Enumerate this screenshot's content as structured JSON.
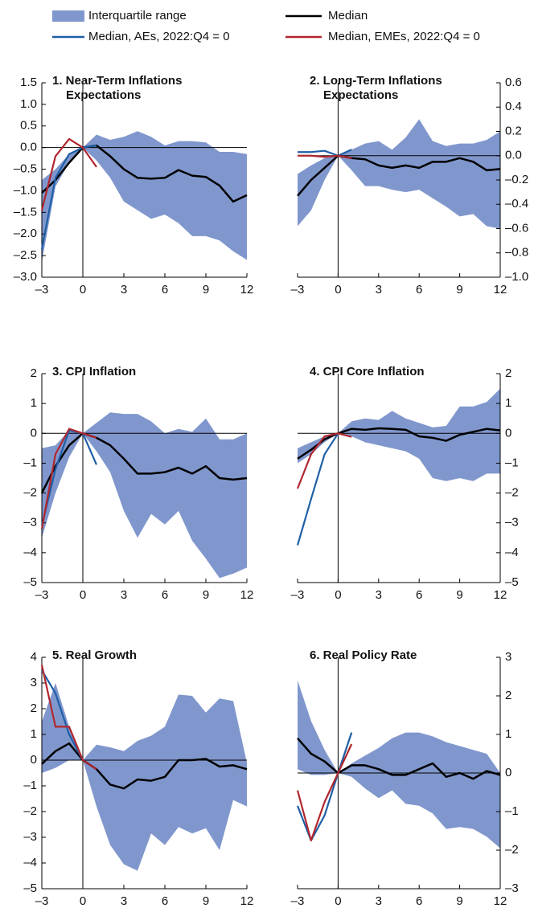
{
  "legend": {
    "iqr": {
      "label": "Interquartile range",
      "color": "#8097cd"
    },
    "median": {
      "label": "Median",
      "color": "#000000"
    },
    "median_aes": {
      "label": "Median, AEs, 2022:Q4 = 0",
      "color": "#1f5fa6"
    },
    "median_emes": {
      "label": "Median, EMEs, 2022:Q4 = 0",
      "color": "#b0272e"
    }
  },
  "chart_data": [
    {
      "type": "line",
      "title": "1. Near-Term Inflations Expectations",
      "yaxis_side": "left",
      "x": [
        -3,
        -2,
        -1,
        0,
        1,
        2,
        3,
        4,
        5,
        6,
        7,
        8,
        9,
        10,
        11,
        12
      ],
      "xlim": [
        -3,
        12
      ],
      "xticks": [
        {
          "value": -3,
          "label": "–3"
        },
        0,
        3,
        6,
        9,
        12
      ],
      "ylim": [
        -3,
        1.5
      ],
      "yticks": [
        {
          "value": -3,
          "label": "–3.0"
        },
        {
          "value": -2.5,
          "label": "–2.5"
        },
        {
          "value": -2,
          "label": "–2.0"
        },
        {
          "value": -1.5,
          "label": "–1.5"
        },
        {
          "value": -1,
          "label": "–1.0"
        },
        {
          "value": -0.5,
          "label": "–0.5"
        },
        {
          "value": 0,
          "label": "0.0"
        },
        0.5,
        {
          "value": 1,
          "label": "1.0"
        },
        1.5
      ],
      "iqr": {
        "upper": [
          -0.75,
          -0.5,
          -0.15,
          0,
          0.3,
          0.18,
          0.25,
          0.38,
          0.25,
          0.05,
          0.15,
          0.15,
          0.12,
          -0.1,
          -0.1,
          -0.15
        ],
        "lower": [
          -2.65,
          -0.9,
          -0.35,
          0,
          -0.3,
          -0.7,
          -1.25,
          -1.45,
          -1.65,
          -1.55,
          -1.75,
          -2.05,
          -2.05,
          -2.15,
          -2.4,
          -2.6
        ]
      },
      "median": [
        -1.05,
        -0.75,
        -0.35,
        0,
        0.05,
        -0.2,
        -0.5,
        -0.7,
        -0.72,
        -0.7,
        -0.52,
        -0.65,
        -0.68,
        -0.88,
        -1.25,
        -1.1
      ],
      "median_aes": [
        -2.35,
        -0.7,
        -0.15,
        0,
        0.05,
        null,
        null,
        null,
        null,
        null,
        null,
        null,
        null,
        null,
        null,
        null
      ],
      "median_emes": [
        -1.45,
        -0.2,
        0.2,
        0,
        -0.45,
        null,
        null,
        null,
        null,
        null,
        null,
        null,
        null,
        null,
        null,
        null
      ]
    },
    {
      "type": "line",
      "title": "2. Long-Term Inflations Expectations",
      "yaxis_side": "right",
      "x": [
        -3,
        -2,
        -1,
        0,
        1,
        2,
        3,
        4,
        5,
        6,
        7,
        8,
        9,
        10,
        11,
        12
      ],
      "xlim": [
        -3,
        12
      ],
      "xticks": [
        {
          "value": -3,
          "label": "–3"
        },
        0,
        3,
        6,
        9,
        12
      ],
      "ylim": [
        -1,
        0.6
      ],
      "yticks": [
        {
          "value": -1,
          "label": "–1.0"
        },
        {
          "value": -0.8,
          "label": "–0.8"
        },
        {
          "value": -0.6,
          "label": "–0.6"
        },
        {
          "value": -0.4,
          "label": "–0.4"
        },
        {
          "value": -0.2,
          "label": "–0.2"
        },
        {
          "value": 0,
          "label": "0.0"
        },
        0.2,
        0.4,
        0.6
      ],
      "iqr": {
        "upper": [
          -0.15,
          -0.08,
          -0.02,
          0,
          0.05,
          0.1,
          0.12,
          0.05,
          0.15,
          0.3,
          0.12,
          0.08,
          0.1,
          0.1,
          0.13,
          0.2
        ],
        "lower": [
          -0.58,
          -0.45,
          -0.2,
          0,
          -0.12,
          -0.25,
          -0.25,
          -0.28,
          -0.3,
          -0.28,
          -0.35,
          -0.42,
          -0.5,
          -0.48,
          -0.58,
          -0.6
        ]
      },
      "median": [
        -0.33,
        -0.2,
        -0.1,
        0,
        -0.02,
        -0.03,
        -0.08,
        -0.1,
        -0.08,
        -0.1,
        -0.05,
        -0.05,
        -0.02,
        -0.05,
        -0.12,
        -0.11
      ],
      "median_aes": [
        0.03,
        0.03,
        0.04,
        0,
        0.05,
        null,
        null,
        null,
        null,
        null,
        null,
        null,
        null,
        null,
        null,
        null
      ],
      "median_emes": [
        0,
        0,
        -0.01,
        0,
        -0.02,
        null,
        null,
        null,
        null,
        null,
        null,
        null,
        null,
        null,
        null,
        null
      ]
    },
    {
      "type": "line",
      "title": "3. CPI Inflation",
      "yaxis_side": "left",
      "x": [
        -3,
        -2,
        -1,
        0,
        1,
        2,
        3,
        4,
        5,
        6,
        7,
        8,
        9,
        10,
        11,
        12
      ],
      "xlim": [
        -3,
        12
      ],
      "xticks": [
        {
          "value": -3,
          "label": "–3"
        },
        0,
        3,
        6,
        9,
        12
      ],
      "ylim": [
        -5,
        2
      ],
      "yticks": [
        {
          "value": -5,
          "label": "–5"
        },
        {
          "value": -4,
          "label": "–4"
        },
        {
          "value": -3,
          "label": "–3"
        },
        {
          "value": -2,
          "label": "–2"
        },
        {
          "value": -1,
          "label": "–1"
        },
        0,
        1,
        2
      ],
      "iqr": {
        "upper": [
          -0.5,
          -0.4,
          0.1,
          0,
          0.35,
          0.7,
          0.65,
          0.65,
          0.4,
          0,
          0.15,
          0.05,
          0.5,
          -0.2,
          -0.2,
          0
        ],
        "lower": [
          -3.5,
          -2,
          -0.8,
          0,
          -0.6,
          -1.3,
          -2.6,
          -3.5,
          -2.7,
          -3.05,
          -2.6,
          -3.6,
          -4.2,
          -4.85,
          -4.7,
          -4.5
        ]
      },
      "median": [
        -2,
        -1.1,
        -0.4,
        0,
        -0.15,
        -0.4,
        -0.85,
        -1.35,
        -1.35,
        -1.3,
        -1.15,
        -1.35,
        -1.1,
        -1.5,
        -1.55,
        -1.5
      ],
      "median_aes": [
        -3.1,
        -1.2,
        0.1,
        0,
        -1.05,
        null,
        null,
        null,
        null,
        null,
        null,
        null,
        null,
        null,
        null,
        null
      ],
      "median_emes": [
        -3.2,
        -0.7,
        0.15,
        0,
        -0.15,
        null,
        null,
        null,
        null,
        null,
        null,
        null,
        null,
        null,
        null,
        null
      ]
    },
    {
      "type": "line",
      "title": "4. CPI Core Inflation",
      "yaxis_side": "right",
      "x": [
        -3,
        -2,
        -1,
        0,
        1,
        2,
        3,
        4,
        5,
        6,
        7,
        8,
        9,
        10,
        11,
        12
      ],
      "xlim": [
        -3,
        12
      ],
      "xticks": [
        {
          "value": -3,
          "label": "–3"
        },
        0,
        3,
        6,
        9,
        12
      ],
      "ylim": [
        -5,
        2
      ],
      "yticks": [
        {
          "value": -5,
          "label": "–5"
        },
        {
          "value": -4,
          "label": "–4"
        },
        {
          "value": -3,
          "label": "–3"
        },
        {
          "value": -2,
          "label": "–2"
        },
        {
          "value": -1,
          "label": "–1"
        },
        0,
        1,
        2
      ],
      "iqr": {
        "upper": [
          -0.5,
          -0.3,
          -0.1,
          0,
          0.4,
          0.5,
          0.45,
          0.75,
          0.5,
          0.35,
          0.2,
          0.25,
          0.9,
          0.9,
          1.05,
          1.5
        ],
        "lower": [
          -1,
          -0.7,
          -0.3,
          0,
          -0.1,
          -0.3,
          -0.4,
          -0.5,
          -0.6,
          -0.85,
          -1.5,
          -1.6,
          -1.5,
          -1.6,
          -1.35,
          -1.35
        ]
      },
      "median": [
        -0.85,
        -0.55,
        -0.2,
        0,
        0.15,
        0.12,
        0.17,
        0.15,
        0.12,
        -0.1,
        -0.15,
        -0.25,
        -0.05,
        0.05,
        0.15,
        0.1
      ],
      "median_aes": [
        -3.75,
        -2.2,
        -0.7,
        0,
        null,
        null,
        null,
        null,
        null,
        null,
        null,
        null,
        null,
        null,
        null,
        null
      ],
      "median_emes": [
        -1.85,
        -0.7,
        -0.1,
        0,
        -0.12,
        null,
        null,
        null,
        null,
        null,
        null,
        null,
        null,
        null,
        null,
        null
      ]
    },
    {
      "type": "line",
      "title": "5. Real Growth",
      "yaxis_side": "left",
      "x": [
        -3,
        -2,
        -1,
        0,
        1,
        2,
        3,
        4,
        5,
        6,
        7,
        8,
        9,
        10,
        11,
        12
      ],
      "xlim": [
        -3,
        12
      ],
      "xticks": [
        {
          "value": -3,
          "label": "–3"
        },
        0,
        3,
        6,
        9,
        12
      ],
      "ylim": [
        -5,
        4
      ],
      "yticks": [
        {
          "value": -5,
          "label": "–5"
        },
        {
          "value": -4,
          "label": "–4"
        },
        {
          "value": -3,
          "label": "–3"
        },
        {
          "value": -2,
          "label": "–2"
        },
        {
          "value": -1,
          "label": "–1"
        },
        0,
        1,
        2,
        3,
        4
      ],
      "iqr": {
        "upper": [
          1.5,
          3,
          1.3,
          0,
          0.6,
          0.5,
          0.35,
          0.75,
          0.95,
          1.3,
          2.55,
          2.5,
          1.85,
          2.4,
          2.3,
          -0.1
        ],
        "lower": [
          -0.5,
          -0.3,
          0,
          0,
          -1.8,
          -3.3,
          -4.05,
          -4.3,
          -2.85,
          -3.3,
          -2.6,
          -2.85,
          -2.65,
          -3.5,
          -1.55,
          -1.8
        ]
      },
      "median": [
        -0.15,
        0.35,
        0.65,
        0,
        -0.35,
        -0.95,
        -1.1,
        -0.75,
        -0.8,
        -0.65,
        0,
        0,
        0.05,
        -0.25,
        -0.2,
        -0.35
      ],
      "median_aes": [
        3.5,
        2.6,
        1,
        0,
        null,
        null,
        null,
        null,
        null,
        null,
        null,
        null,
        null,
        null,
        null,
        null
      ],
      "median_emes": [
        3.7,
        1.3,
        1.3,
        0,
        -0.35,
        null,
        null,
        null,
        null,
        null,
        null,
        null,
        null,
        null,
        null,
        null
      ]
    },
    {
      "type": "line",
      "title": "6. Real Policy Rate",
      "yaxis_side": "right",
      "x": [
        -3,
        -2,
        -1,
        0,
        1,
        2,
        3,
        4,
        5,
        6,
        7,
        8,
        9,
        10,
        11,
        12
      ],
      "xlim": [
        -3,
        12
      ],
      "xticks": [
        {
          "value": -3,
          "label": "–3"
        },
        0,
        3,
        6,
        9,
        12
      ],
      "ylim": [
        -3,
        3
      ],
      "yticks": [
        {
          "value": -3,
          "label": "–3"
        },
        {
          "value": -2,
          "label": "–2"
        },
        {
          "value": -1,
          "label": "–1"
        },
        0,
        1,
        2,
        3
      ],
      "iqr": {
        "upper": [
          2.4,
          1.35,
          0.6,
          0,
          0.25,
          0.45,
          0.65,
          0.9,
          1.05,
          1.05,
          0.95,
          0.8,
          0.7,
          0.6,
          0.5,
          0
        ],
        "lower": [
          0.1,
          -0.05,
          -0.05,
          0,
          -0.1,
          -0.4,
          -0.65,
          -0.45,
          -0.8,
          -0.85,
          -1.05,
          -1.45,
          -1.4,
          -1.45,
          -1.65,
          -1.95
        ]
      },
      "median": [
        0.9,
        0.5,
        0.3,
        0,
        0.2,
        0.2,
        0.1,
        -0.05,
        -0.05,
        0.1,
        0.25,
        -0.1,
        0,
        -0.15,
        0.05,
        -0.05
      ],
      "median_aes": [
        -0.85,
        -1.75,
        -1.1,
        0,
        1.05,
        null,
        null,
        null,
        null,
        null,
        null,
        null,
        null,
        null,
        null,
        null
      ],
      "median_emes": [
        -0.45,
        -1.75,
        -0.75,
        0,
        0.75,
        null,
        null,
        null,
        null,
        null,
        null,
        null,
        null,
        null,
        null,
        null
      ]
    }
  ]
}
